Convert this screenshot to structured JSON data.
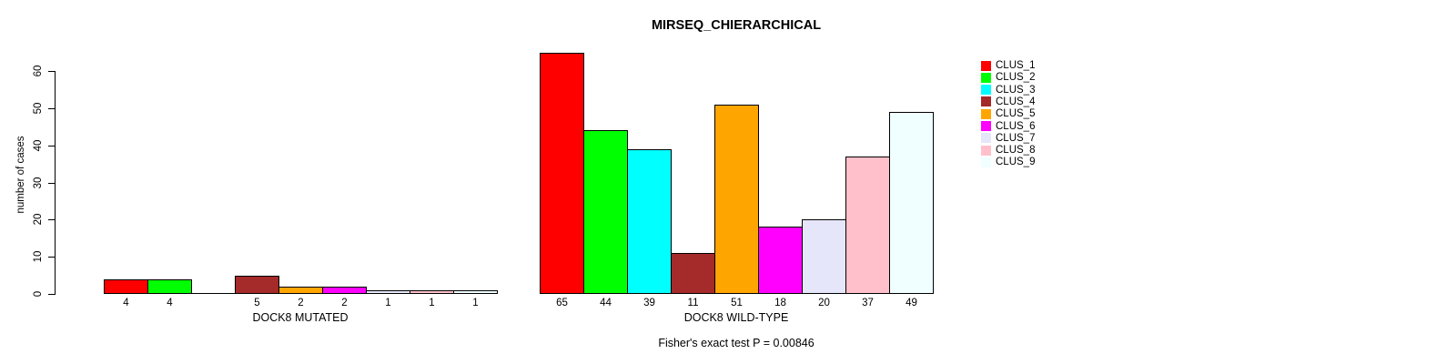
{
  "chart_data": {
    "type": "bar",
    "title": "MIRSEQ_CHIERARCHICAL",
    "ylabel": "number of cases",
    "subtitle": "Fisher's exact test P = 0.00846",
    "ylim": [
      0,
      60
    ],
    "yticks": [
      0,
      10,
      20,
      30,
      40,
      50,
      60
    ],
    "grid": false,
    "legend_position": "top-right",
    "legend": [
      {
        "label": "CLUS_1",
        "color": "#FF0000"
      },
      {
        "label": "CLUS_2",
        "color": "#00FF00"
      },
      {
        "label": "CLUS_3",
        "color": "#00FFFF"
      },
      {
        "label": "CLUS_4",
        "color": "#A52A2A"
      },
      {
        "label": "CLUS_5",
        "color": "#FFA500"
      },
      {
        "label": "CLUS_6",
        "color": "#FF00FF"
      },
      {
        "label": "CLUS_7",
        "color": "#E6E6FA"
      },
      {
        "label": "CLUS_8",
        "color": "#FFC0CB"
      },
      {
        "label": "CLUS_9",
        "color": "#F0FFFF"
      }
    ],
    "groups": [
      {
        "label": "DOCK8 MUTATED",
        "values": [
          4,
          4,
          0,
          5,
          2,
          2,
          1,
          1,
          1
        ]
      },
      {
        "label": "DOCK8 WILD-TYPE",
        "values": [
          65,
          44,
          39,
          11,
          51,
          18,
          20,
          37,
          49
        ]
      }
    ]
  }
}
